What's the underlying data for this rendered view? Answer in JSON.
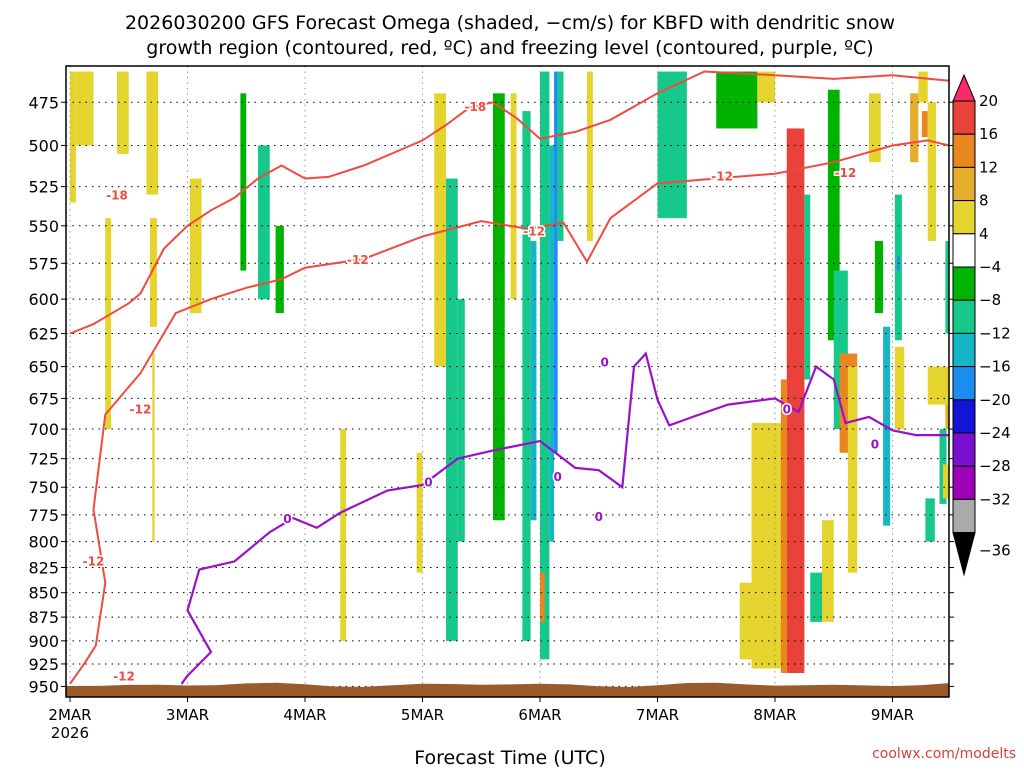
{
  "chart_data": {
    "type": "heatmap",
    "title_line1": "2026030200 GFS Forecast Omega (shaded, −cm/s) for KBFD with dendritic snow",
    "title_line2": "growth region (contoured, red, ºC) and freezing level (contoured, purple, ºC)",
    "xlabel": "Forecast Time (UTC)",
    "credit": "coolwx.com/modelts",
    "x_ticks": [
      "2MAR",
      "3MAR",
      "4MAR",
      "5MAR",
      "6MAR",
      "7MAR",
      "8MAR",
      "9MAR"
    ],
    "x_tick_day": [
      0,
      1,
      2,
      3,
      4,
      5,
      6,
      7
    ],
    "x_year_label": "2026",
    "xlim_days": [
      0,
      7.5
    ],
    "y_ticks": [
      475,
      500,
      525,
      550,
      575,
      600,
      625,
      650,
      675,
      700,
      725,
      750,
      775,
      800,
      825,
      850,
      875,
      900,
      925,
      950
    ],
    "y_tick_labels": [
      "475",
      "500",
      "525",
      "550",
      "575",
      "600",
      "625",
      "650",
      "675",
      "700",
      "725",
      "750",
      "775",
      "800",
      "825",
      "850",
      "875",
      "900",
      "925",
      "950"
    ],
    "ylim_hpa": [
      455,
      962
    ],
    "y_scale": "log-pressure",
    "colorbar": {
      "labels": [
        "20",
        "16",
        "12",
        "8",
        "4",
        "−4",
        "−8",
        "−12",
        "−16",
        "−20",
        "−24",
        "−28",
        "−32",
        "−36"
      ],
      "colors": [
        "#fa2a6b",
        "#e8423a",
        "#e8861f",
        "#e4ad2c",
        "#e6d42e",
        "#ffffff",
        "#00b300",
        "#16c98a",
        "#15b6c6",
        "#1b8cf0",
        "#1414d6",
        "#7a0fcf",
        "#9d00b8",
        "#aaaaaa",
        "#000000"
      ]
    },
    "contour_labels": {
      "dendritic": [
        "-18",
        "-18",
        "-12",
        "-12",
        "-12",
        "-12",
        "-12",
        "-12",
        "-12"
      ],
      "freezing": [
        "0",
        "0",
        "0",
        "0",
        "0",
        "0",
        "0"
      ]
    },
    "dgz_upper_hpa": [
      [
        0,
        625
      ],
      [
        0.2,
        618
      ],
      [
        0.5,
        603
      ],
      [
        0.6,
        596
      ],
      [
        0.8,
        565
      ],
      [
        1.0,
        550
      ],
      [
        1.2,
        540
      ],
      [
        1.4,
        532
      ],
      [
        1.6,
        520
      ],
      [
        1.8,
        512
      ],
      [
        2.0,
        520
      ],
      [
        2.2,
        519
      ],
      [
        2.5,
        512
      ],
      [
        2.8,
        503
      ],
      [
        3.0,
        497
      ],
      [
        3.2,
        488
      ],
      [
        3.4,
        478
      ],
      [
        3.6,
        475
      ],
      [
        3.8,
        484
      ],
      [
        4.0,
        496
      ],
      [
        4.3,
        492
      ],
      [
        4.6,
        485
      ],
      [
        5.0,
        470
      ],
      [
        5.4,
        458
      ],
      [
        6.0,
        460
      ],
      [
        6.5,
        462
      ],
      [
        7.0,
        460
      ],
      [
        7.5,
        463
      ]
    ],
    "dgz_lower_hpa": [
      [
        0,
        947
      ],
      [
        0.12,
        925
      ],
      [
        0.22,
        905
      ],
      [
        0.3,
        840
      ],
      [
        0.2,
        770
      ],
      [
        0.3,
        688
      ],
      [
        0.6,
        655
      ],
      [
        0.9,
        610
      ],
      [
        1.2,
        600
      ],
      [
        1.5,
        592
      ],
      [
        1.8,
        586
      ],
      [
        2.0,
        578
      ],
      [
        2.5,
        572
      ],
      [
        3.0,
        557
      ],
      [
        3.5,
        547
      ],
      [
        3.9,
        552
      ],
      [
        4.2,
        548
      ],
      [
        4.4,
        574
      ],
      [
        4.6,
        545
      ],
      [
        5.0,
        523
      ],
      [
        5.5,
        520
      ],
      [
        6.0,
        517
      ],
      [
        6.5,
        510
      ],
      [
        7.0,
        500
      ],
      [
        7.3,
        497
      ],
      [
        7.5,
        500
      ]
    ],
    "freezing_level_hpa": [
      [
        0.95,
        947
      ],
      [
        1.0,
        938
      ],
      [
        1.2,
        912
      ],
      [
        1.0,
        868
      ],
      [
        1.1,
        827
      ],
      [
        1.4,
        819
      ],
      [
        1.7,
        791
      ],
      [
        1.9,
        778
      ],
      [
        2.1,
        787
      ],
      [
        2.3,
        773
      ],
      [
        2.7,
        753
      ],
      [
        3.0,
        748
      ],
      [
        3.3,
        725
      ],
      [
        3.6,
        718
      ],
      [
        4.0,
        710
      ],
      [
        4.3,
        733
      ],
      [
        4.5,
        735
      ],
      [
        4.7,
        750
      ],
      [
        4.8,
        650
      ],
      [
        4.9,
        640
      ],
      [
        5.0,
        676
      ],
      [
        5.1,
        697
      ],
      [
        5.3,
        690
      ],
      [
        5.6,
        680
      ],
      [
        6.0,
        675
      ],
      [
        6.2,
        686
      ],
      [
        6.35,
        650
      ],
      [
        6.5,
        660
      ],
      [
        6.6,
        695
      ],
      [
        6.8,
        690
      ],
      [
        7.0,
        701
      ],
      [
        7.2,
        705
      ],
      [
        7.5,
        705
      ]
    ],
    "omega_regions": [
      {
        "day0": 0.0,
        "day1": 0.05,
        "p0": 458,
        "p1": 535,
        "value": 5
      },
      {
        "day0": 0.05,
        "day1": 0.2,
        "p0": 458,
        "p1": 500,
        "value": 5
      },
      {
        "day0": 0.4,
        "day1": 0.5,
        "p0": 458,
        "p1": 505,
        "value": 6
      },
      {
        "day0": 0.65,
        "day1": 0.75,
        "p0": 458,
        "p1": 530,
        "value": 6
      },
      {
        "day0": 0.3,
        "day1": 0.35,
        "p0": 545,
        "p1": 700,
        "value": 6
      },
      {
        "day0": 0.68,
        "day1": 0.74,
        "p0": 545,
        "p1": 620,
        "value": 6
      },
      {
        "day0": 0.7,
        "day1": 0.72,
        "p0": 640,
        "p1": 800,
        "value": 5
      },
      {
        "day0": 1.02,
        "day1": 1.12,
        "p0": 520,
        "p1": 610,
        "value": 5
      },
      {
        "day0": 1.45,
        "day1": 1.5,
        "p0": 470,
        "p1": 580,
        "value": -6
      },
      {
        "day0": 1.6,
        "day1": 1.7,
        "p0": 500,
        "p1": 600,
        "value": -10
      },
      {
        "day0": 1.75,
        "day1": 1.82,
        "p0": 550,
        "p1": 610,
        "value": -7
      },
      {
        "day0": 2.3,
        "day1": 2.35,
        "p0": 700,
        "p1": 900,
        "value": 5
      },
      {
        "day0": 2.95,
        "day1": 3.0,
        "p0": 720,
        "p1": 830,
        "value": 5
      },
      {
        "day0": 3.1,
        "day1": 3.2,
        "p0": 470,
        "p1": 650,
        "value": 5
      },
      {
        "day0": 3.2,
        "day1": 3.3,
        "p0": 520,
        "p1": 900,
        "value": -8
      },
      {
        "day0": 3.3,
        "day1": 3.36,
        "p0": 600,
        "p1": 800,
        "value": -11
      },
      {
        "day0": 3.6,
        "day1": 3.7,
        "p0": 470,
        "p1": 780,
        "value": -7
      },
      {
        "day0": 3.75,
        "day1": 3.8,
        "p0": 470,
        "p1": 600,
        "value": 6
      },
      {
        "day0": 3.85,
        "day1": 3.92,
        "p0": 480,
        "p1": 900,
        "value": -8
      },
      {
        "day0": 3.92,
        "day1": 3.97,
        "p0": 560,
        "p1": 780,
        "value": -12
      },
      {
        "day0": 4.0,
        "day1": 4.08,
        "p0": 458,
        "p1": 920,
        "value": -8
      },
      {
        "day0": 4.08,
        "day1": 4.12,
        "p0": 500,
        "p1": 800,
        "value": -13
      },
      {
        "day0": 4.12,
        "day1": 4.15,
        "p0": 458,
        "p1": 720,
        "value": -19
      },
      {
        "day0": 4.15,
        "day1": 4.2,
        "p0": 458,
        "p1": 560,
        "value": -8
      },
      {
        "day0": 4.4,
        "day1": 4.45,
        "p0": 458,
        "p1": 560,
        "value": 5
      },
      {
        "day0": 4.0,
        "day1": 4.04,
        "p0": 830,
        "p1": 880,
        "value": 12
      },
      {
        "day0": 5.0,
        "day1": 5.25,
        "p0": 458,
        "p1": 545,
        "value": -8
      },
      {
        "day0": 5.5,
        "day1": 5.85,
        "p0": 458,
        "p1": 490,
        "value": -7
      },
      {
        "day0": 5.85,
        "day1": 6.0,
        "p0": 458,
        "p1": 475,
        "value": 5
      },
      {
        "day0": 5.8,
        "day1": 6.25,
        "p0": 695,
        "p1": 930,
        "value": 5
      },
      {
        "day0": 5.7,
        "day1": 5.8,
        "p0": 840,
        "p1": 920,
        "value": 5
      },
      {
        "day0": 6.1,
        "day1": 6.25,
        "p0": 490,
        "p1": 935,
        "value": 17
      },
      {
        "day0": 6.05,
        "day1": 6.1,
        "p0": 660,
        "p1": 935,
        "value": 13
      },
      {
        "day0": 6.25,
        "day1": 6.3,
        "p0": 530,
        "p1": 660,
        "value": -9
      },
      {
        "day0": 6.3,
        "day1": 6.4,
        "p0": 830,
        "p1": 880,
        "value": -8
      },
      {
        "day0": 6.4,
        "day1": 6.5,
        "p0": 780,
        "p1": 880,
        "value": 5
      },
      {
        "day0": 6.45,
        "day1": 6.55,
        "p0": 468,
        "p1": 630,
        "value": -7
      },
      {
        "day0": 6.5,
        "day1": 6.62,
        "p0": 580,
        "p1": 700,
        "value": -8
      },
      {
        "day0": 6.55,
        "day1": 6.7,
        "p0": 640,
        "p1": 720,
        "value": 12
      },
      {
        "day0": 6.62,
        "day1": 6.7,
        "p0": 650,
        "p1": 830,
        "value": 5
      },
      {
        "day0": 6.8,
        "day1": 6.9,
        "p0": 470,
        "p1": 510,
        "value": 5
      },
      {
        "day0": 6.85,
        "day1": 6.92,
        "p0": 560,
        "p1": 610,
        "value": -7
      },
      {
        "day0": 6.92,
        "day1": 6.98,
        "p0": 620,
        "p1": 785,
        "value": -12
      },
      {
        "day0": 7.02,
        "day1": 7.08,
        "p0": 530,
        "p1": 630,
        "value": -11
      },
      {
        "day0": 7.04,
        "day1": 7.06,
        "p0": 570,
        "p1": 580,
        "value": -18
      },
      {
        "day0": 7.02,
        "day1": 7.1,
        "p0": 635,
        "p1": 700,
        "value": 5
      },
      {
        "day0": 7.15,
        "day1": 7.22,
        "p0": 470,
        "p1": 510,
        "value": 10
      },
      {
        "day0": 7.22,
        "day1": 7.3,
        "p0": 458,
        "p1": 475,
        "value": 5
      },
      {
        "day0": 7.25,
        "day1": 7.3,
        "p0": 480,
        "p1": 495,
        "value": 14
      },
      {
        "day0": 7.3,
        "day1": 7.37,
        "p0": 475,
        "p1": 560,
        "value": 5
      },
      {
        "day0": 7.45,
        "day1": 7.5,
        "p0": 680,
        "p1": 700,
        "value": 11
      },
      {
        "day0": 7.3,
        "day1": 7.5,
        "p0": 650,
        "p1": 680,
        "value": 5
      },
      {
        "day0": 7.4,
        "day1": 7.46,
        "p0": 700,
        "p1": 765,
        "value": -8
      },
      {
        "day0": 7.45,
        "day1": 7.5,
        "p0": 560,
        "p1": 625,
        "value": -8
      },
      {
        "day0": 7.43,
        "day1": 7.48,
        "p0": 730,
        "p1": 760,
        "value": 5
      },
      {
        "day0": 7.28,
        "day1": 7.36,
        "p0": 760,
        "p1": 800,
        "value": -8
      }
    ],
    "terrain_surface_hpa": 947,
    "terrain_color": "#9a5a2a",
    "dgz_color": "#f14a40",
    "freezing_color": "#9a12c8"
  }
}
